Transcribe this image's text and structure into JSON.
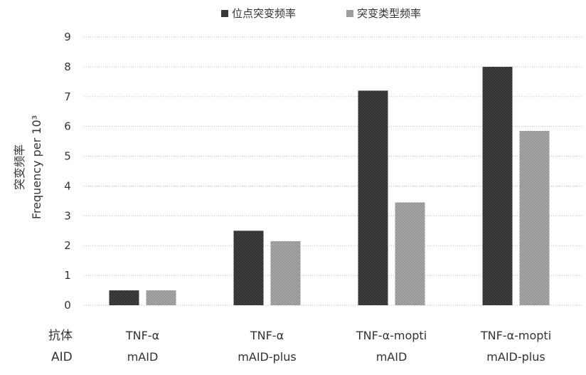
{
  "chart_data": {
    "type": "bar",
    "title": "",
    "categories": [
      {
        "line1": "TNF-α",
        "line2": "mAID"
      },
      {
        "line1": "TNF-α",
        "line2": "mAID-plus"
      },
      {
        "line1": "TNF-α-mopti",
        "line2": "mAID"
      },
      {
        "line1": "TNF-α-mopti",
        "line2": "mAID-plus"
      }
    ],
    "row_labels": {
      "line1": "抗体",
      "line2": "AID"
    },
    "series": [
      {
        "name": "位点突变频率",
        "values": [
          0.5,
          2.5,
          7.2,
          8.0
        ],
        "color": "#3f3f3f"
      },
      {
        "name": "突变类型频率",
        "values": [
          0.5,
          2.15,
          3.45,
          5.85
        ],
        "color": "#a6a6a6"
      }
    ],
    "ylabel_line1": "突变频率",
    "ylabel_line2": "Frequency per 10³",
    "ylim": [
      0,
      9
    ],
    "yticks": [
      0,
      1,
      2,
      3,
      4,
      5,
      6,
      7,
      8,
      9
    ],
    "grid": true,
    "legend_position": "top-center"
  }
}
